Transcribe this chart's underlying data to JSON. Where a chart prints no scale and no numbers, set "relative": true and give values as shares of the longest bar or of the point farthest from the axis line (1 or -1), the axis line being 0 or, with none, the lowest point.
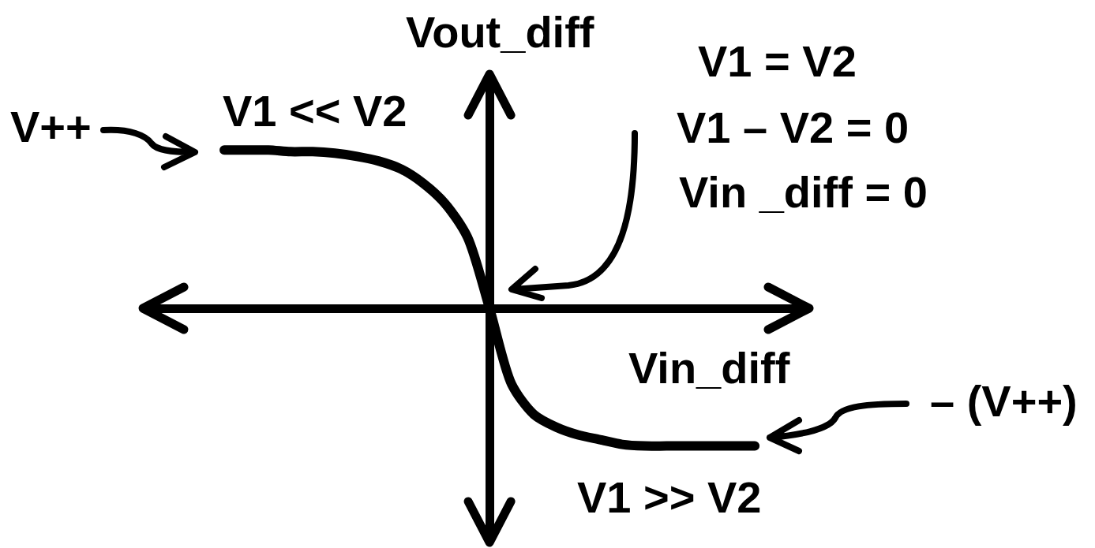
{
  "chart_data": {
    "type": "line",
    "xlabel": "Vin_diff",
    "ylabel": "Vout_diff",
    "annotations": [
      "V1 << V2",
      "V++",
      "V1 = V2",
      "V1 – V2 = 0",
      "Vin _diff = 0",
      "– (V++)",
      "V1 >> V2"
    ],
    "categories": [
      null,
      null,
      null,
      null,
      null,
      null,
      null,
      null,
      null,
      null,
      null,
      null,
      null,
      null,
      null,
      null,
      null,
      null,
      null,
      null,
      null,
      null,
      null,
      null,
      null
    ],
    "values": [
      1,
      1,
      1,
      0.99,
      0.99,
      0.98,
      0.96,
      0.93,
      0.88,
      0.79,
      0.66,
      0.45,
      0,
      -0.48,
      -0.67,
      -0.75,
      -0.8,
      -0.83,
      -0.86,
      -0.87,
      -0.87,
      -0.87,
      -0.87,
      -0.87,
      -0.87
    ],
    "color": "#000000",
    "relative": true
  }
}
